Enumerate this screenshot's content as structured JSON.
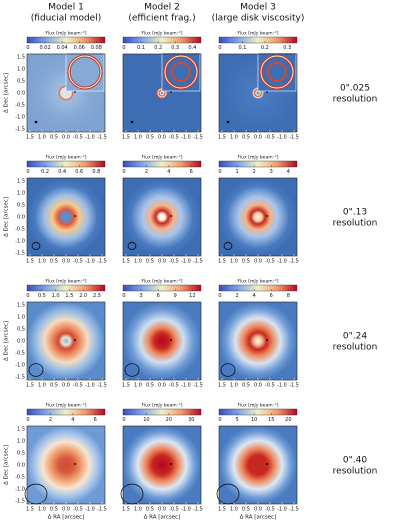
{
  "columns": [
    {
      "title": "Model 1",
      "subtitle": "(fiducial model)"
    },
    {
      "title": "Model 2",
      "subtitle": "(efficient frag.)"
    },
    {
      "title": "Model 3",
      "subtitle": "(large disk viscosity)"
    }
  ],
  "colorbar_label": "Flux [mJy beam⁻¹]",
  "y_axis_label": "Δ Dec [arcsec]",
  "x_axis_label": "Δ RA [arcsec]",
  "axis_ticks": [
    "1.5",
    "1.0",
    "0.5",
    "0.0",
    "-0.5",
    "-1.0",
    "-1.5"
  ],
  "rows": [
    {
      "label": [
        "0\".025",
        "resolution"
      ],
      "colorbars": [
        [
          "0",
          "0.02",
          "0.04",
          "0.06",
          "0.08"
        ],
        [
          "0",
          "0.1",
          "0.2",
          "0.3",
          "0.4"
        ],
        [
          "0",
          "0.1",
          "0.2",
          "0.3"
        ]
      ]
    },
    {
      "label": [
        "0\".13",
        "resolution"
      ],
      "colorbars": [
        [
          "0",
          "0.2",
          "0.4",
          "0.6",
          "0.8"
        ],
        [
          "0",
          "2",
          "4",
          "6"
        ],
        [
          "0",
          "1",
          "2",
          "3",
          "4"
        ]
      ]
    },
    {
      "label": [
        "0\".24",
        "resolution"
      ],
      "colorbars": [
        [
          "0",
          "0.5",
          "1.0",
          "1.5",
          "2.0",
          "2.5"
        ],
        [
          "0",
          "3",
          "6",
          "9",
          "12"
        ],
        [
          "0",
          "2",
          "4",
          "6",
          "8"
        ]
      ]
    },
    {
      "label": [
        "0\".40",
        "resolution"
      ],
      "colorbars": [
        [
          "0",
          "2",
          "4",
          "6"
        ],
        [
          "0",
          "10",
          "20",
          "30"
        ],
        [
          "0",
          "5",
          "10",
          "15",
          "20"
        ]
      ]
    }
  ]
}
